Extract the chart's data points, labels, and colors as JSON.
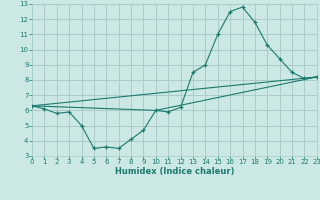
{
  "xlabel": "Humidex (Indice chaleur)",
  "background_color": "#cce8e4",
  "grid_color": "#aaccca",
  "line_color": "#1a7a6e",
  "xlim": [
    0,
    23
  ],
  "ylim": [
    3,
    13
  ],
  "xticks": [
    0,
    1,
    2,
    3,
    4,
    5,
    6,
    7,
    8,
    9,
    10,
    11,
    12,
    13,
    14,
    15,
    16,
    17,
    18,
    19,
    20,
    21,
    22,
    23
  ],
  "yticks": [
    3,
    4,
    5,
    6,
    7,
    8,
    9,
    10,
    11,
    12,
    13
  ],
  "line1_x": [
    0,
    1,
    2,
    3,
    4,
    5,
    6,
    7,
    8,
    9,
    10,
    11,
    12,
    13,
    14,
    15,
    16,
    17,
    18,
    19,
    20,
    21,
    22,
    23
  ],
  "line1_y": [
    6.3,
    6.1,
    5.8,
    5.9,
    5.0,
    3.5,
    3.6,
    3.5,
    4.1,
    4.7,
    6.0,
    5.9,
    6.2,
    8.5,
    9.0,
    11.0,
    12.5,
    12.8,
    11.8,
    10.3,
    9.4,
    8.5,
    8.1,
    8.2
  ],
  "line2_x": [
    0,
    10,
    23
  ],
  "line2_y": [
    6.3,
    6.0,
    8.2
  ],
  "line3_x": [
    0,
    23
  ],
  "line3_y": [
    6.3,
    8.2
  ]
}
